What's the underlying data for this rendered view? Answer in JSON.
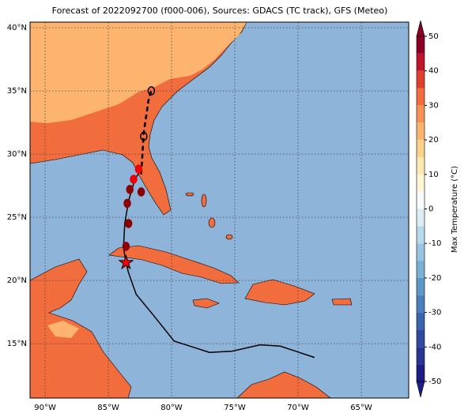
{
  "chart_data": {
    "type": "map",
    "title": "Forecast of 2022092700 (f000-006), Sources: GDACS (TC track), GFS (Meteo)",
    "xlim": [
      -91.19,
      -61.25
    ],
    "ylim": [
      10.69,
      40.44
    ],
    "xticks": [
      {
        "value": -90,
        "label": "90°W"
      },
      {
        "value": -85,
        "label": "85°W"
      },
      {
        "value": -80,
        "label": "80°W"
      },
      {
        "value": -75,
        "label": "75°W"
      },
      {
        "value": -70,
        "label": "70°W"
      },
      {
        "value": -65,
        "label": "65°W"
      }
    ],
    "yticks": [
      {
        "value": 15,
        "label": "15°N"
      },
      {
        "value": 20,
        "label": "20°N"
      },
      {
        "value": 25,
        "label": "25°N"
      },
      {
        "value": 30,
        "label": "30°N"
      },
      {
        "value": 35,
        "label": "35°N"
      },
      {
        "value": 40,
        "label": "40°N"
      }
    ],
    "grid": true,
    "track": {
      "color": "#000000",
      "lon": [
        -68.7,
        -71.4,
        -73.0,
        -75.2,
        -77.0,
        -79.8,
        -81.4,
        -82.8,
        -83.4,
        -83.6,
        -83.8,
        -83.7,
        -83.4,
        -82.9,
        -82.4
      ],
      "lat": [
        13.9,
        14.8,
        14.9,
        14.4,
        14.3,
        15.2,
        17.2,
        18.9,
        20.6,
        21.4,
        22.6,
        24.5,
        26.3,
        28.0,
        28.8
      ]
    },
    "forecast": {
      "color": "#000000",
      "lon": [
        -82.4,
        -82.2,
        -81.8,
        -81.6
      ],
      "lat": [
        28.4,
        31.7,
        34.4,
        35.0
      ]
    },
    "markers": {
      "lon": [
        -83.6,
        -83.4,
        -83.5,
        -83.3,
        -83.0,
        -82.6,
        -82.4,
        -82.2,
        -81.6
      ],
      "lat": [
        22.7,
        24.5,
        26.1,
        27.2,
        28.0,
        28.8,
        27.0,
        31.4,
        35.0
      ],
      "colors": [
        "#8b0000",
        "#8b0000",
        "#8b0000",
        "#8b0000",
        "#ee0000",
        "#ee0000",
        "#8b0000",
        "none",
        "none"
      ]
    },
    "star": {
      "lon": -83.6,
      "lat": 21.4,
      "color": "#ff0000"
    },
    "colorbar": {
      "label": "Max Temperature (°C)",
      "lim": [
        -50,
        50
      ],
      "ticks": [
        -50,
        -40,
        -30,
        -20,
        -10,
        0,
        10,
        20,
        30,
        40,
        50
      ],
      "bounds": [
        -50,
        -45,
        -40,
        -35,
        -30,
        -25,
        -20,
        -15,
        -10,
        -5,
        0,
        5,
        10,
        15,
        20,
        25,
        30,
        35,
        40,
        45,
        50
      ],
      "colors": [
        "#1e1e86",
        "#283593",
        "#2f4aa0",
        "#3a64ad",
        "#4a80bb",
        "#5b97c8",
        "#79b0d6",
        "#98c6e2",
        "#b8dbec",
        "#dcedf5",
        "#f7fbfb",
        "#fff6d8",
        "#ffe9b0",
        "#fed28a",
        "#fdb46e",
        "#f99155",
        "#f26d3d",
        "#e0402b",
        "#c0142a",
        "#8c0026"
      ]
    }
  }
}
